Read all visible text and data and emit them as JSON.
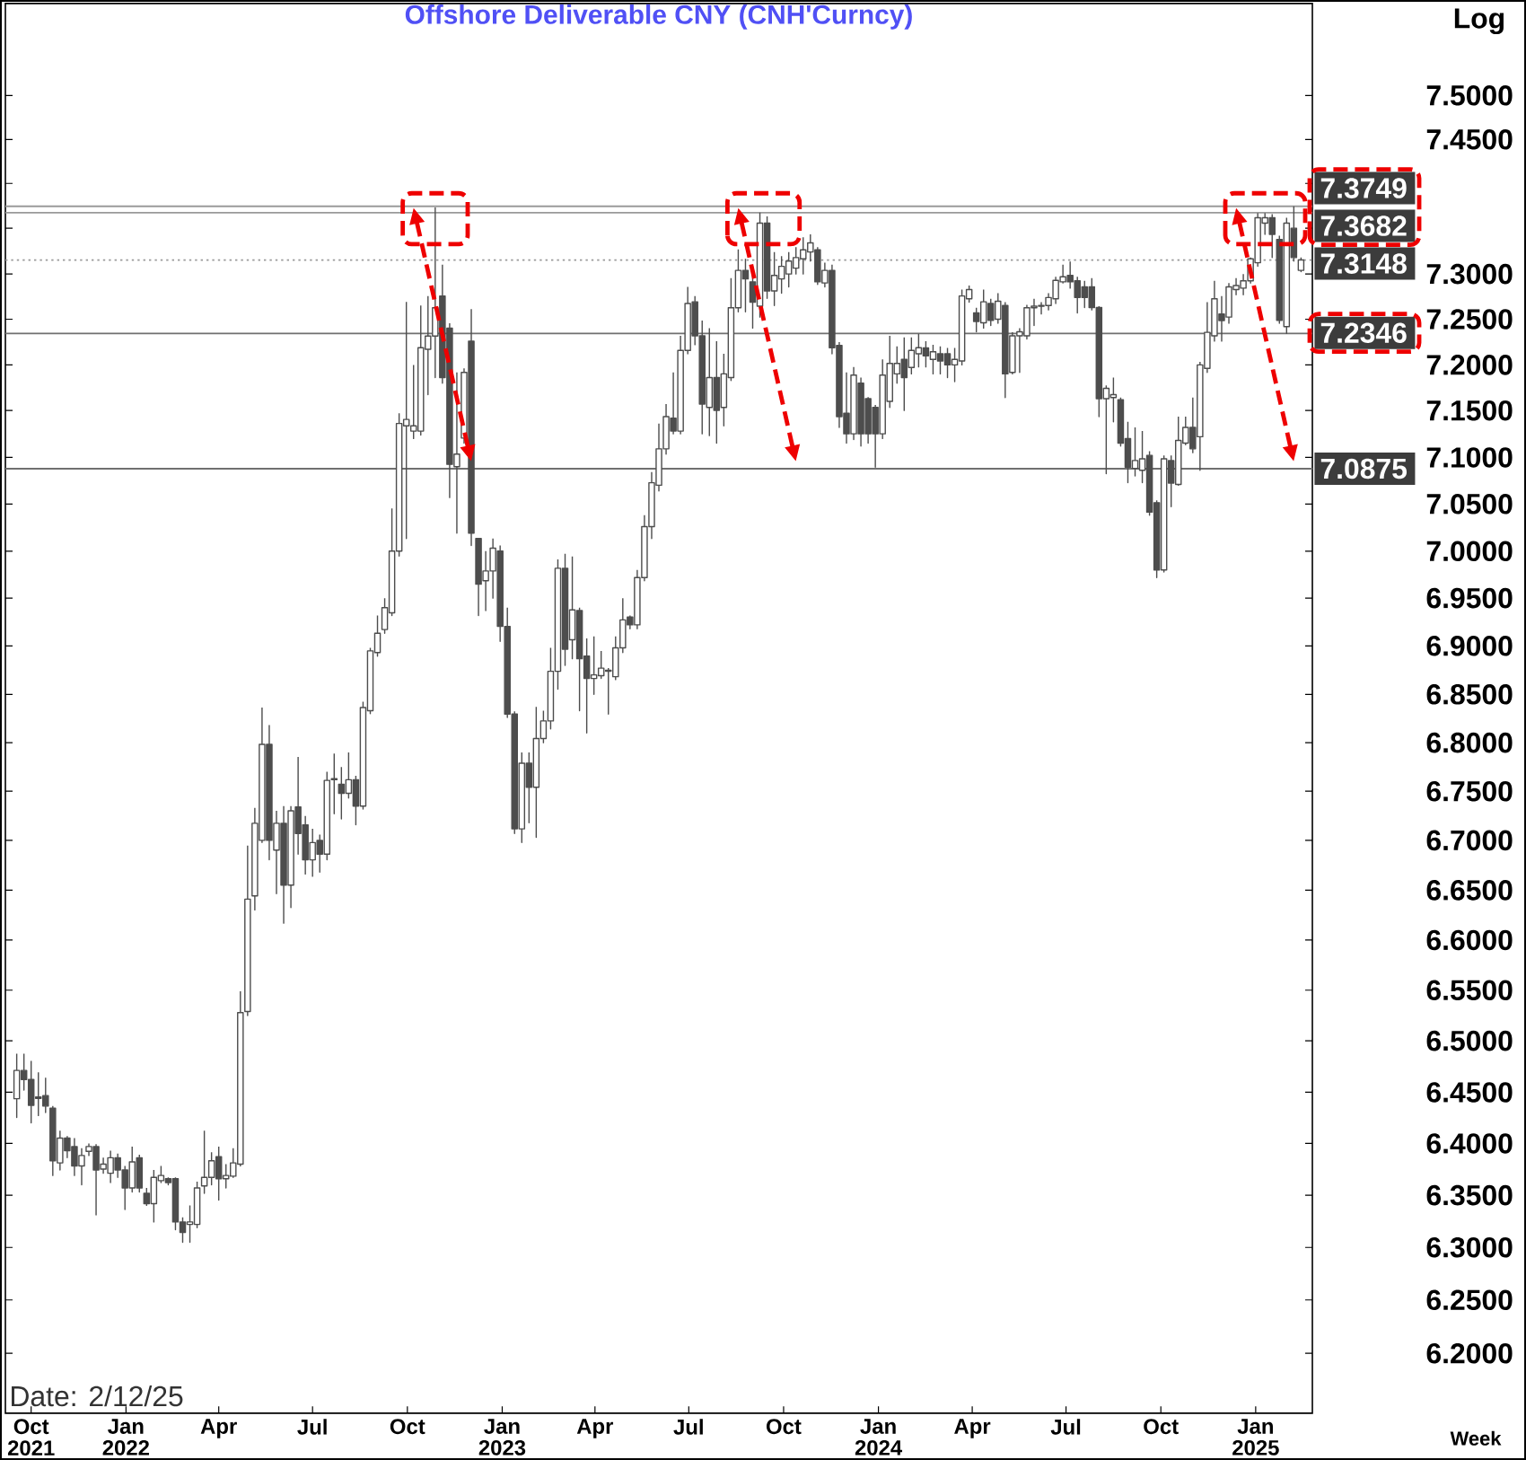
{
  "chart_data": {
    "type": "candlestick",
    "title": "Offshore Deliverable CNY (CNH'Curncy)",
    "xlabel": "Week",
    "ylabel": "Log",
    "log": true,
    "color": "#4d4d4d",
    "x": [
      "2021-09-17",
      "2021-09-24",
      "2021-10-01",
      "2021-10-08",
      "2021-10-15",
      "2021-10-22",
      "2021-10-29",
      "2021-11-05",
      "2021-11-12",
      "2021-11-19",
      "2021-11-26",
      "2021-12-03",
      "2021-12-10",
      "2021-12-17",
      "2021-12-24",
      "2021-12-31",
      "2022-01-07",
      "2022-01-14",
      "2022-01-21",
      "2022-01-28",
      "2022-02-04",
      "2022-02-11",
      "2022-02-18",
      "2022-02-25",
      "2022-03-04",
      "2022-03-11",
      "2022-03-18",
      "2022-03-25",
      "2022-04-01",
      "2022-04-08",
      "2022-04-15",
      "2022-04-22",
      "2022-04-29",
      "2022-05-06",
      "2022-05-13",
      "2022-05-20",
      "2022-05-27",
      "2022-06-03",
      "2022-06-10",
      "2022-06-17",
      "2022-06-24",
      "2022-07-01",
      "2022-07-08",
      "2022-07-15",
      "2022-07-22",
      "2022-07-29",
      "2022-08-05",
      "2022-08-12",
      "2022-08-19",
      "2022-08-26",
      "2022-09-02",
      "2022-09-09",
      "2022-09-16",
      "2022-09-23",
      "2022-09-30",
      "2022-10-07",
      "2022-10-14",
      "2022-10-21",
      "2022-10-28",
      "2022-11-04",
      "2022-11-11",
      "2022-11-18",
      "2022-11-25",
      "2022-12-02",
      "2022-12-09",
      "2022-12-16",
      "2022-12-23",
      "2022-12-30",
      "2023-01-06",
      "2023-01-13",
      "2023-01-20",
      "2023-01-27",
      "2023-02-03",
      "2023-02-10",
      "2023-02-17",
      "2023-02-24",
      "2023-03-03",
      "2023-03-10",
      "2023-03-17",
      "2023-03-24",
      "2023-03-31",
      "2023-04-07",
      "2023-04-14",
      "2023-04-21",
      "2023-04-28",
      "2023-05-05",
      "2023-05-12",
      "2023-05-19",
      "2023-05-26",
      "2023-06-02",
      "2023-06-09",
      "2023-06-16",
      "2023-06-23",
      "2023-06-30",
      "2023-07-07",
      "2023-07-14",
      "2023-07-21",
      "2023-07-28",
      "2023-08-04",
      "2023-08-11",
      "2023-08-18",
      "2023-08-25",
      "2023-09-01",
      "2023-09-08",
      "2023-09-15",
      "2023-09-22",
      "2023-09-29",
      "2023-10-06",
      "2023-10-13",
      "2023-10-20",
      "2023-10-27",
      "2023-11-03",
      "2023-11-10",
      "2023-11-17",
      "2023-11-24",
      "2023-12-01",
      "2023-12-08",
      "2023-12-15",
      "2023-12-22",
      "2023-12-29",
      "2024-01-05",
      "2024-01-12",
      "2024-01-19",
      "2024-01-26",
      "2024-02-02",
      "2024-02-09",
      "2024-02-16",
      "2024-02-23",
      "2024-03-01",
      "2024-03-08",
      "2024-03-15",
      "2024-03-22",
      "2024-03-29",
      "2024-04-05",
      "2024-04-12",
      "2024-04-19",
      "2024-04-26",
      "2024-05-03",
      "2024-05-10",
      "2024-05-17",
      "2024-05-24",
      "2024-05-31",
      "2024-06-07",
      "2024-06-14",
      "2024-06-21",
      "2024-06-28",
      "2024-07-05",
      "2024-07-12",
      "2024-07-19",
      "2024-07-26",
      "2024-08-02",
      "2024-08-09",
      "2024-08-16",
      "2024-08-23",
      "2024-08-30",
      "2024-09-06",
      "2024-09-13",
      "2024-09-20",
      "2024-09-27",
      "2024-10-04",
      "2024-10-11",
      "2024-10-18",
      "2024-10-25",
      "2024-11-01",
      "2024-11-08",
      "2024-11-15",
      "2024-11-22",
      "2024-11-29",
      "2024-12-06",
      "2024-12-13",
      "2024-12-20",
      "2024-12-27",
      "2025-01-03",
      "2025-01-10",
      "2025-01-17",
      "2025-01-24",
      "2025-01-31",
      "2025-02-07",
      "2025-02-14"
    ],
    "ohlc": [
      [
        6.443,
        6.487,
        6.425,
        6.471
      ],
      [
        6.471,
        6.487,
        6.452,
        6.462
      ],
      [
        6.462,
        6.48,
        6.42,
        6.437
      ],
      [
        6.444,
        6.469,
        6.427,
        6.445
      ],
      [
        6.446,
        6.464,
        6.43,
        6.436
      ],
      [
        6.434,
        6.436,
        6.369,
        6.383
      ],
      [
        6.381,
        6.412,
        6.374,
        6.405
      ],
      [
        6.405,
        6.407,
        6.386,
        6.393
      ],
      [
        6.397,
        6.405,
        6.369,
        6.378
      ],
      [
        6.378,
        6.395,
        6.36,
        6.388
      ],
      [
        6.392,
        6.4,
        6.388,
        6.397
      ],
      [
        6.397,
        6.399,
        6.331,
        6.374
      ],
      [
        6.375,
        6.386,
        6.371,
        6.38
      ],
      [
        6.371,
        6.393,
        6.362,
        6.386
      ],
      [
        6.386,
        6.39,
        6.367,
        6.374
      ],
      [
        6.374,
        6.378,
        6.336,
        6.357
      ],
      [
        6.357,
        6.397,
        6.353,
        6.382
      ],
      [
        6.386,
        6.389,
        6.353,
        6.357
      ],
      [
        6.352,
        6.357,
        6.34,
        6.342
      ],
      [
        6.342,
        6.374,
        6.324,
        6.367
      ],
      [
        6.364,
        6.378,
        6.362,
        6.369
      ],
      [
        6.366,
        6.367,
        6.36,
        6.362
      ],
      [
        6.366,
        6.367,
        6.317,
        6.324
      ],
      [
        6.324,
        6.329,
        6.305,
        6.314
      ],
      [
        6.322,
        6.34,
        6.305,
        6.324
      ],
      [
        6.322,
        6.363,
        6.319,
        6.357
      ],
      [
        6.359,
        6.412,
        6.352,
        6.367
      ],
      [
        6.367,
        6.391,
        6.36,
        6.383
      ],
      [
        6.387,
        6.397,
        6.345,
        6.366
      ],
      [
        6.366,
        6.38,
        6.357,
        6.369
      ],
      [
        6.368,
        6.395,
        6.367,
        6.381
      ],
      [
        6.38,
        6.549,
        6.378,
        6.528
      ],
      [
        6.529,
        6.695,
        6.525,
        6.641
      ],
      [
        6.644,
        6.733,
        6.63,
        6.717
      ],
      [
        6.7,
        6.836,
        6.698,
        6.798
      ],
      [
        6.798,
        6.818,
        6.68,
        6.7
      ],
      [
        6.69,
        6.73,
        6.646,
        6.717
      ],
      [
        6.717,
        6.735,
        6.617,
        6.655
      ],
      [
        6.655,
        6.735,
        6.632,
        6.73
      ],
      [
        6.734,
        6.785,
        6.686,
        6.707
      ],
      [
        6.716,
        6.725,
        6.666,
        6.68
      ],
      [
        6.68,
        6.712,
        6.664,
        6.698
      ],
      [
        6.7,
        6.706,
        6.668,
        6.686
      ],
      [
        6.686,
        6.77,
        6.68,
        6.761
      ],
      [
        6.762,
        6.789,
        6.727,
        6.763
      ],
      [
        6.757,
        6.775,
        6.722,
        6.748
      ],
      [
        6.748,
        6.79,
        6.743,
        6.762
      ],
      [
        6.762,
        6.766,
        6.716,
        6.735
      ],
      [
        6.735,
        6.842,
        6.732,
        6.836
      ],
      [
        6.833,
        6.898,
        6.83,
        6.895
      ],
      [
        6.893,
        6.932,
        6.89,
        6.913
      ],
      [
        6.917,
        6.95,
        6.913,
        6.94
      ],
      [
        6.935,
        7.045,
        6.932,
        7.0
      ],
      [
        7.0,
        7.147,
        6.995,
        7.137
      ],
      [
        7.134,
        7.269,
        7.013,
        7.141
      ],
      [
        7.128,
        7.2,
        7.12,
        7.134
      ],
      [
        7.128,
        7.265,
        7.124,
        7.219
      ],
      [
        7.217,
        7.275,
        7.167,
        7.231
      ],
      [
        7.231,
        7.374,
        7.186,
        7.262
      ],
      [
        7.275,
        7.31,
        7.18,
        7.186
      ],
      [
        7.24,
        7.245,
        7.057,
        7.093
      ],
      [
        7.09,
        7.192,
        7.019,
        7.103
      ],
      [
        7.121,
        7.196,
        7.115,
        7.192
      ],
      [
        7.226,
        7.261,
        7.006,
        7.019
      ],
      [
        7.013,
        7.013,
        6.932,
        6.965
      ],
      [
        6.969,
        7.0,
        6.937,
        6.979
      ],
      [
        6.979,
        7.013,
        6.95,
        7.003
      ],
      [
        7.0,
        7.006,
        6.905,
        6.921
      ],
      [
        6.921,
        6.94,
        6.826,
        6.829
      ],
      [
        6.829,
        6.832,
        6.707,
        6.712
      ],
      [
        6.712,
        6.79,
        6.698,
        6.779
      ],
      [
        6.779,
        6.79,
        6.718,
        6.754
      ],
      [
        6.754,
        6.837,
        6.703,
        6.804
      ],
      [
        6.804,
        6.833,
        6.8,
        6.822
      ],
      [
        6.822,
        6.898,
        6.814,
        6.874
      ],
      [
        6.874,
        6.991,
        6.855,
        6.982
      ],
      [
        6.982,
        6.997,
        6.88,
        6.897
      ],
      [
        6.907,
        6.994,
        6.887,
        6.938
      ],
      [
        6.937,
        6.94,
        6.833,
        6.887
      ],
      [
        6.89,
        6.908,
        6.81,
        6.866
      ],
      [
        6.866,
        6.91,
        6.85,
        6.87
      ],
      [
        6.869,
        6.895,
        6.866,
        6.877
      ],
      [
        6.874,
        6.877,
        6.829,
        6.875
      ],
      [
        6.868,
        6.91,
        6.865,
        6.898
      ],
      [
        6.898,
        6.95,
        6.893,
        6.927
      ],
      [
        6.93,
        6.932,
        6.918,
        6.922
      ],
      [
        6.922,
        6.98,
        6.918,
        6.972
      ],
      [
        6.972,
        7.038,
        6.969,
        7.026
      ],
      [
        7.026,
        7.084,
        7.013,
        7.073
      ],
      [
        7.07,
        7.137,
        7.064,
        7.109
      ],
      [
        7.109,
        7.157,
        7.103,
        7.144
      ],
      [
        7.142,
        7.192,
        7.125,
        7.128
      ],
      [
        7.128,
        7.232,
        7.125,
        7.216
      ],
      [
        7.216,
        7.285,
        7.212,
        7.267
      ],
      [
        7.269,
        7.275,
        7.222,
        7.232
      ],
      [
        7.232,
        7.248,
        7.125,
        7.157
      ],
      [
        7.154,
        7.24,
        7.123,
        7.186
      ],
      [
        7.186,
        7.226,
        7.115,
        7.151
      ],
      [
        7.154,
        7.212,
        7.134,
        7.19
      ],
      [
        7.186,
        7.295,
        7.183,
        7.262
      ],
      [
        7.262,
        7.327,
        7.258,
        7.304
      ],
      [
        7.304,
        7.316,
        7.258,
        7.294
      ],
      [
        7.291,
        7.308,
        7.24,
        7.268
      ],
      [
        7.264,
        7.3682,
        7.252,
        7.356
      ],
      [
        7.356,
        7.364,
        7.273,
        7.281
      ],
      [
        7.281,
        7.324,
        7.265,
        7.298
      ],
      [
        7.294,
        7.32,
        7.278,
        7.308
      ],
      [
        7.3,
        7.324,
        7.285,
        7.314
      ],
      [
        7.306,
        7.33,
        7.3,
        7.318
      ],
      [
        7.316,
        7.34,
        7.3,
        7.326
      ],
      [
        7.324,
        7.344,
        7.314,
        7.334
      ],
      [
        7.326,
        7.33,
        7.288,
        7.291
      ],
      [
        7.29,
        7.312,
        7.285,
        7.304
      ],
      [
        7.304,
        7.31,
        7.212,
        7.219
      ],
      [
        7.221,
        7.225,
        7.132,
        7.144
      ],
      [
        7.147,
        7.192,
        7.115,
        7.125
      ],
      [
        7.125,
        7.198,
        7.119,
        7.189
      ],
      [
        7.18,
        7.186,
        7.112,
        7.125
      ],
      [
        7.163,
        7.165,
        7.115,
        7.125
      ],
      [
        7.154,
        7.156,
        7.089,
        7.125
      ],
      [
        7.125,
        7.206,
        7.12,
        7.189
      ],
      [
        7.16,
        7.232,
        7.154,
        7.202
      ],
      [
        7.19,
        7.22,
        7.18,
        7.202
      ],
      [
        7.206,
        7.23,
        7.15,
        7.186
      ],
      [
        7.197,
        7.23,
        7.19,
        7.216
      ],
      [
        7.212,
        7.234,
        7.198,
        7.219
      ],
      [
        7.218,
        7.226,
        7.198,
        7.21
      ],
      [
        7.206,
        7.222,
        7.19,
        7.214
      ],
      [
        7.212,
        7.22,
        7.19,
        7.204
      ],
      [
        7.212,
        7.218,
        7.186,
        7.2
      ],
      [
        7.2,
        7.218,
        7.182,
        7.206
      ],
      [
        7.204,
        7.282,
        7.2,
        7.275
      ],
      [
        7.272,
        7.287,
        7.268,
        7.282
      ],
      [
        7.257,
        7.262,
        7.236,
        7.247
      ],
      [
        7.246,
        7.282,
        7.24,
        7.269
      ],
      [
        7.267,
        7.272,
        7.243,
        7.249
      ],
      [
        7.25,
        7.278,
        7.245,
        7.27
      ],
      [
        7.265,
        7.268,
        7.164,
        7.19
      ],
      [
        7.192,
        7.235,
        7.19,
        7.232
      ],
      [
        7.232,
        7.24,
        7.192,
        7.236
      ],
      [
        7.232,
        7.266,
        7.228,
        7.262
      ],
      [
        7.262,
        7.272,
        7.243,
        7.264
      ],
      [
        7.264,
        7.268,
        7.255,
        7.265
      ],
      [
        7.265,
        7.278,
        7.26,
        7.274
      ],
      [
        7.272,
        7.297,
        7.267,
        7.293
      ],
      [
        7.291,
        7.31,
        7.29,
        7.297
      ],
      [
        7.298,
        7.313,
        7.284,
        7.291
      ],
      [
        7.292,
        7.297,
        7.257,
        7.274
      ],
      [
        7.286,
        7.292,
        7.263,
        7.274
      ],
      [
        7.286,
        7.295,
        7.26,
        7.263
      ],
      [
        7.263,
        7.264,
        7.144,
        7.163
      ],
      [
        7.163,
        7.177,
        7.083,
        7.174
      ],
      [
        7.164,
        7.186,
        7.138,
        7.167
      ],
      [
        7.162,
        7.164,
        7.112,
        7.115
      ],
      [
        7.12,
        7.138,
        7.073,
        7.089
      ],
      [
        7.088,
        7.132,
        7.08,
        7.096
      ],
      [
        7.086,
        7.128,
        7.073,
        7.098
      ],
      [
        7.102,
        7.106,
        7.038,
        7.041
      ],
      [
        7.051,
        7.054,
        6.972,
        6.98
      ],
      [
        6.98,
        7.102,
        6.978,
        7.098
      ],
      [
        7.096,
        7.102,
        7.047,
        7.072
      ],
      [
        7.071,
        7.144,
        7.07,
        7.118
      ],
      [
        7.115,
        7.144,
        7.113,
        7.132
      ],
      [
        7.132,
        7.164,
        7.105,
        7.109
      ],
      [
        7.122,
        7.203,
        7.086,
        7.2
      ],
      [
        7.196,
        7.268,
        7.192,
        7.235
      ],
      [
        7.232,
        7.292,
        7.226,
        7.272
      ],
      [
        7.255,
        7.275,
        7.226,
        7.248
      ],
      [
        7.252,
        7.289,
        7.245,
        7.285
      ],
      [
        7.282,
        7.295,
        7.277,
        7.287
      ],
      [
        7.284,
        7.3,
        7.277,
        7.292
      ],
      [
        7.292,
        7.318,
        7.289,
        7.316
      ],
      [
        7.312,
        7.368,
        7.308,
        7.362
      ],
      [
        7.356,
        7.368,
        7.344,
        7.362
      ],
      [
        7.362,
        7.366,
        7.318,
        7.344
      ],
      [
        7.338,
        7.342,
        7.245,
        7.249
      ],
      [
        7.242,
        7.362,
        7.2346,
        7.356
      ],
      [
        7.35,
        7.3749,
        7.314,
        7.318
      ],
      [
        7.304,
        7.318,
        7.302,
        7.3148
      ]
    ],
    "xlim": [
      "2021-09-06",
      "2025-02-25"
    ],
    "ylim": [
      6.144,
      7.604
    ],
    "xticks": [
      {
        "value": "2021-10-01",
        "label": "Oct 2021"
      },
      {
        "value": "2022-01-01",
        "label": "Jan 2022"
      },
      {
        "value": "2022-04-01",
        "label": "Apr"
      },
      {
        "value": "2022-07-01",
        "label": "Jul"
      },
      {
        "value": "2022-10-01",
        "label": "Oct"
      },
      {
        "value": "2023-01-01",
        "label": "Jan 2023"
      },
      {
        "value": "2023-04-01",
        "label": "Apr"
      },
      {
        "value": "2023-07-01",
        "label": "Jul"
      },
      {
        "value": "2023-10-01",
        "label": "Oct"
      },
      {
        "value": "2024-01-01",
        "label": "Jan 2024"
      },
      {
        "value": "2024-04-01",
        "label": "Apr"
      },
      {
        "value": "2024-07-01",
        "label": "Jul"
      },
      {
        "value": "2024-10-01",
        "label": "Oct"
      },
      {
        "value": "2025-01-01",
        "label": "Jan 2025"
      }
    ],
    "yticks": [
      {
        "value": 6.2,
        "label": "6.2000"
      },
      {
        "value": 6.25,
        "label": "6.2500"
      },
      {
        "value": 6.3,
        "label": "6.3000"
      },
      {
        "value": 6.35,
        "label": "6.3500"
      },
      {
        "value": 6.4,
        "label": "6.4000"
      },
      {
        "value": 6.45,
        "label": "6.4500"
      },
      {
        "value": 6.5,
        "label": "6.5000"
      },
      {
        "value": 6.55,
        "label": "6.5500"
      },
      {
        "value": 6.6,
        "label": "6.6000"
      },
      {
        "value": 6.65,
        "label": "6.6500"
      },
      {
        "value": 6.7,
        "label": "6.7000"
      },
      {
        "value": 6.75,
        "label": "6.7500"
      },
      {
        "value": 6.8,
        "label": "6.8000"
      },
      {
        "value": 6.85,
        "label": "6.8500"
      },
      {
        "value": 6.9,
        "label": "6.9000"
      },
      {
        "value": 6.95,
        "label": "6.9500"
      },
      {
        "value": 7.0,
        "label": "7.0000"
      },
      {
        "value": 7.05,
        "label": "7.0500"
      },
      {
        "value": 7.1,
        "label": "7.1000"
      },
      {
        "value": 7.15,
        "label": "7.1500"
      },
      {
        "value": 7.2,
        "label": "7.2000"
      },
      {
        "value": 7.25,
        "label": "7.2500"
      },
      {
        "value": 7.3,
        "label": "7.3000"
      },
      {
        "value": 7.35,
        "label": null
      },
      {
        "value": 7.4,
        "label": null
      },
      {
        "value": 7.45,
        "label": "7.4500"
      },
      {
        "value": 7.5,
        "label": "7.5000"
      }
    ],
    "ref_lines": [
      {
        "axis": "y",
        "value": 7.3749,
        "label": "7.3749",
        "color": "#9a9a9a"
      },
      {
        "axis": "y",
        "value": 7.3682,
        "label": "7.3682",
        "color": "#9a9a9a"
      },
      {
        "axis": "y",
        "value": 7.3148,
        "label": "7.3148",
        "color": "#9a9a9a",
        "line_style": "dotted"
      },
      {
        "axis": "y",
        "value": 7.2346,
        "label": "7.2346",
        "color": "#707070"
      },
      {
        "axis": "y",
        "value": 7.0875,
        "label": "7.0875",
        "color": "#707070"
      }
    ],
    "annotations": [
      "Date: 2/12/25"
    ]
  }
}
